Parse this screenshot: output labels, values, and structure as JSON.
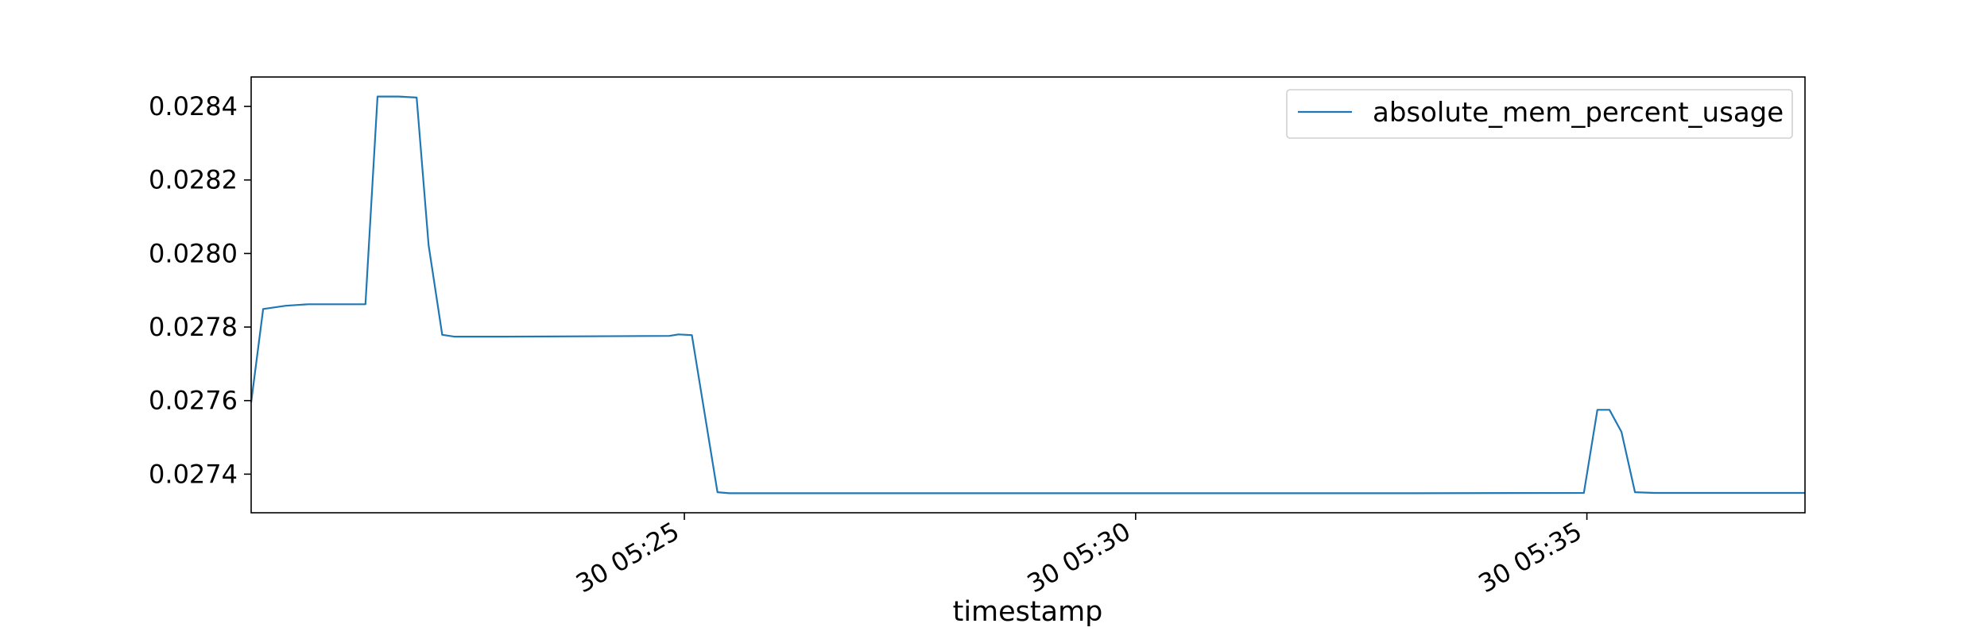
{
  "chart_data": {
    "type": "line",
    "xlabel": "timestamp",
    "ylabel": "",
    "grid": false,
    "legend_position": "top-right",
    "xlim": [
      "30 05:20:12",
      "30 05:37:25"
    ],
    "ylim": [
      0.027295,
      0.02848
    ],
    "x_ticks": [
      {
        "value": "30 05:25",
        "label": "30 05:25"
      },
      {
        "value": "30 05:30",
        "label": "30 05:30"
      },
      {
        "value": "30 05:35",
        "label": "30 05:35"
      }
    ],
    "y_ticks": [
      {
        "value": 0.0274,
        "label": "0.0274"
      },
      {
        "value": 0.0276,
        "label": "0.0276"
      },
      {
        "value": 0.0278,
        "label": "0.0278"
      },
      {
        "value": 0.028,
        "label": "0.0280"
      },
      {
        "value": 0.0282,
        "label": "0.0282"
      },
      {
        "value": 0.0284,
        "label": "0.0284"
      }
    ],
    "series": [
      {
        "name": "absolute_mem_percent_usage",
        "color": "#1f77b4",
        "points": [
          {
            "x": "30 05:20:12",
            "y": 0.027595
          },
          {
            "x": "30 05:20:20",
            "y": 0.027849
          },
          {
            "x": "30 05:20:35",
            "y": 0.027858
          },
          {
            "x": "30 05:20:50",
            "y": 0.027862
          },
          {
            "x": "30 05:21:10",
            "y": 0.027862
          },
          {
            "x": "30 05:21:28",
            "y": 0.027862
          },
          {
            "x": "30 05:21:36",
            "y": 0.028427
          },
          {
            "x": "30 05:21:50",
            "y": 0.028427
          },
          {
            "x": "30 05:22:02",
            "y": 0.028424
          },
          {
            "x": "30 05:22:10",
            "y": 0.028022
          },
          {
            "x": "30 05:22:19",
            "y": 0.027779
          },
          {
            "x": "30 05:22:27",
            "y": 0.027774
          },
          {
            "x": "30 05:23:00",
            "y": 0.027774
          },
          {
            "x": "30 05:24:50",
            "y": 0.027776
          },
          {
            "x": "30 05:24:56",
            "y": 0.02778
          },
          {
            "x": "30 05:25:05",
            "y": 0.027778
          },
          {
            "x": "30 05:25:22",
            "y": 0.027351
          },
          {
            "x": "30 05:25:30",
            "y": 0.027348
          },
          {
            "x": "30 05:27:00",
            "y": 0.027348
          },
          {
            "x": "30 05:33:00",
            "y": 0.027348
          },
          {
            "x": "30 05:34:58",
            "y": 0.027349
          },
          {
            "x": "30 05:35:07",
            "y": 0.027575
          },
          {
            "x": "30 05:35:15",
            "y": 0.027575
          },
          {
            "x": "30 05:35:23",
            "y": 0.027515
          },
          {
            "x": "30 05:35:32",
            "y": 0.027351
          },
          {
            "x": "30 05:35:45",
            "y": 0.027349
          },
          {
            "x": "30 05:36:30",
            "y": 0.027349
          },
          {
            "x": "30 05:37:25",
            "y": 0.027349
          }
        ]
      }
    ]
  }
}
